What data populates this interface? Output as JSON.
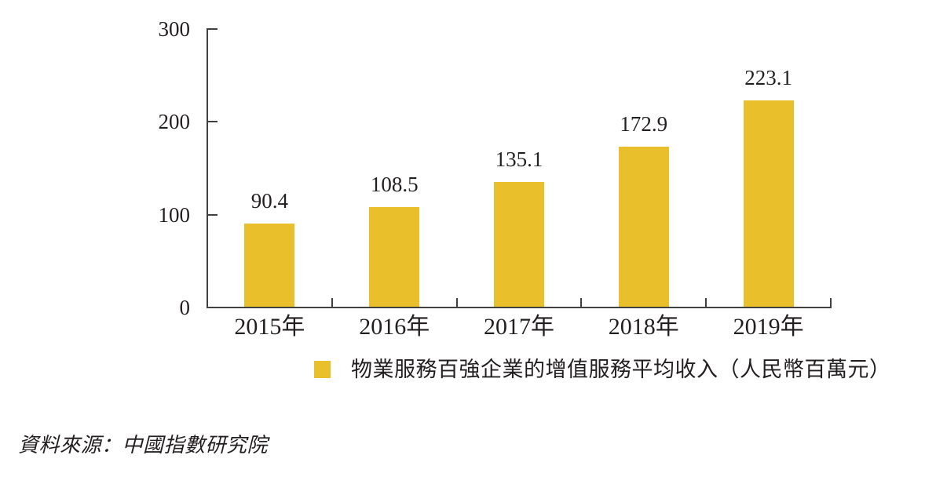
{
  "chart_data": {
    "type": "bar",
    "categories": [
      "2015年",
      "2016年",
      "2017年",
      "2018年",
      "2019年"
    ],
    "values": [
      90.4,
      108.5,
      135.1,
      172.9,
      223.1
    ],
    "value_labels": [
      "90.4",
      "108.5",
      "135.1",
      "172.9",
      "223.1"
    ],
    "legend": "物業服務百強企業的增值服務平均收入（人民幣百萬元）",
    "legend_position": "bottom",
    "ylim": [
      0,
      300
    ],
    "yticks": [
      0,
      100,
      200,
      300
    ],
    "grid": false,
    "bar_color": "#E9C02B",
    "axis_color": "#404040",
    "text_color": "#231F20"
  },
  "source": "資料來源：中國指數研究院"
}
